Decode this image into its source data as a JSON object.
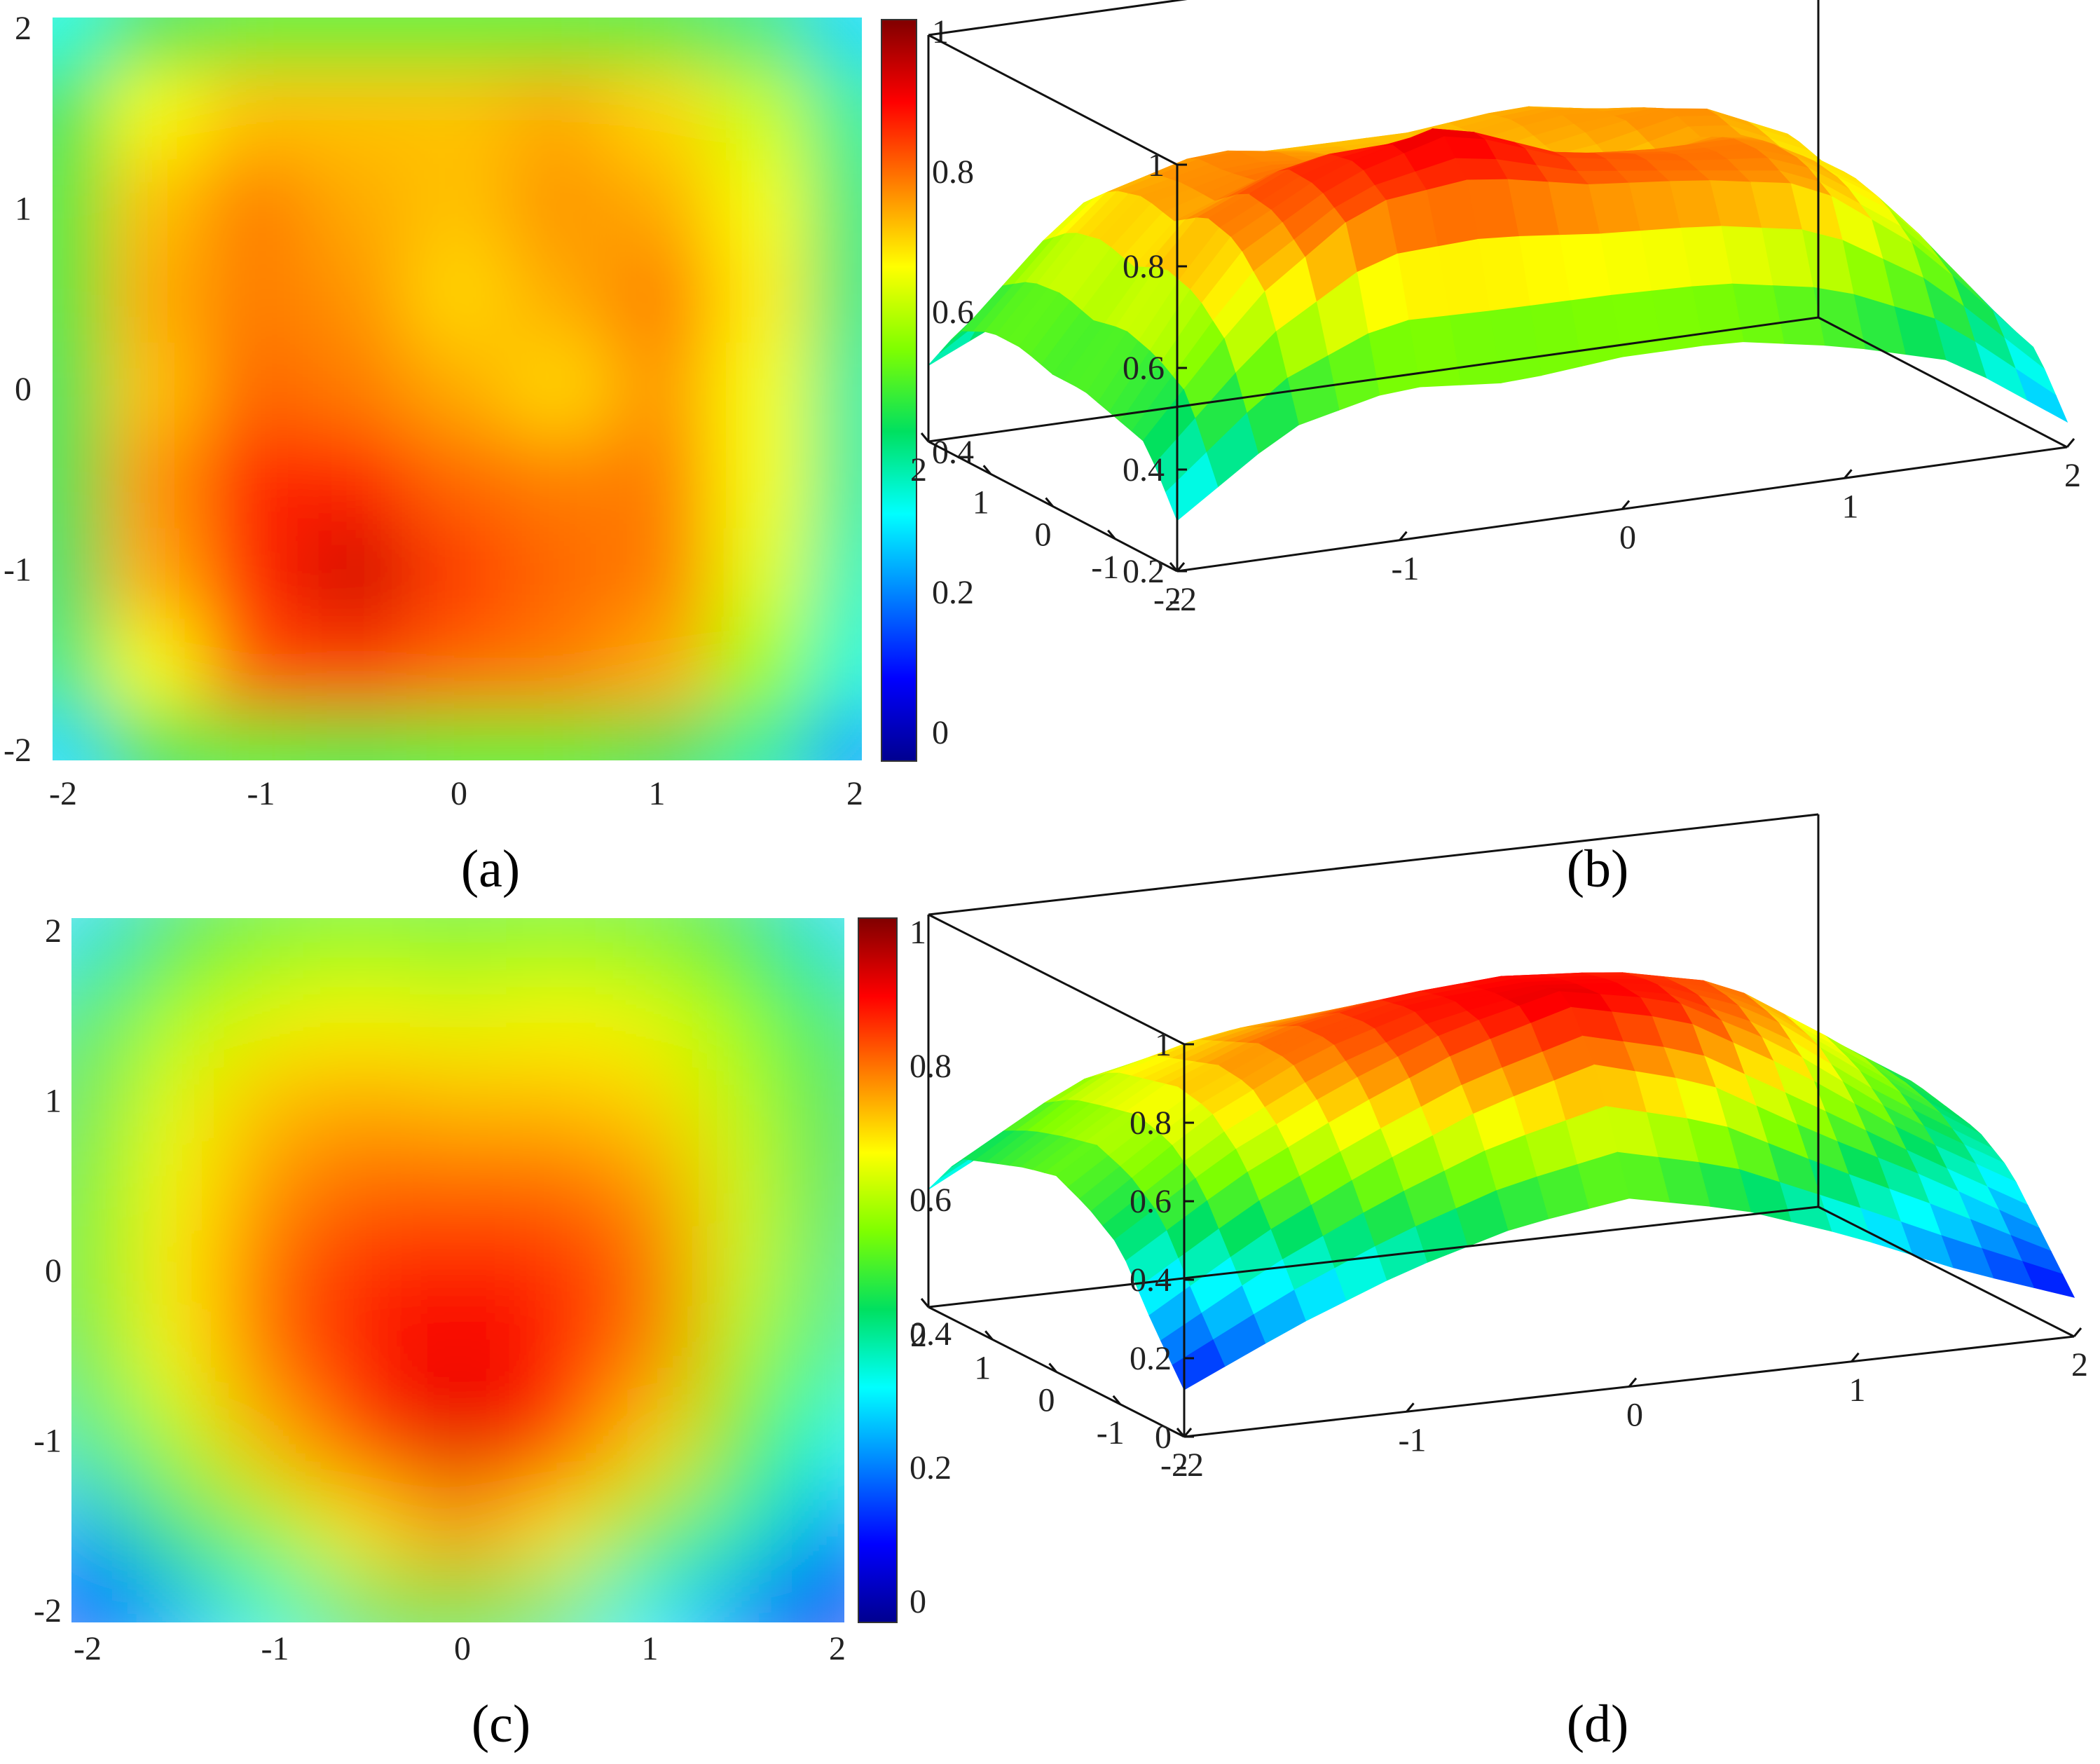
{
  "colormap": [
    "#00008f",
    "#0000ff",
    "#0080ff",
    "#00ffff",
    "#00e060",
    "#7fff00",
    "#ffff00",
    "#ff8000",
    "#ff0000",
    "#800000"
  ],
  "chart_data": [
    {
      "panel": "a",
      "type": "heatmap",
      "label": "(a)",
      "xticks": [
        "-2",
        "-1",
        "0",
        "1",
        "2"
      ],
      "yticks": [
        "2",
        "1",
        "0",
        "-1",
        "-2"
      ],
      "xlim": [
        -2,
        2
      ],
      "ylim": [
        -2,
        2
      ],
      "colorbar": {
        "ticks": [
          "1",
          "0.8",
          "0.6",
          "0.4",
          "0.2",
          "0"
        ],
        "range": [
          0,
          1
        ]
      },
      "x": [
        -2,
        -1.5,
        -1,
        -0.5,
        0,
        0.5,
        1,
        1.5,
        2
      ],
      "y": [
        2,
        1.5,
        1,
        0.5,
        0,
        -0.5,
        -1,
        -1.5,
        -2
      ],
      "z": [
        [
          0.35,
          0.45,
          0.5,
          0.5,
          0.5,
          0.5,
          0.48,
          0.42,
          0.3
        ],
        [
          0.45,
          0.66,
          0.72,
          0.72,
          0.72,
          0.74,
          0.7,
          0.62,
          0.4
        ],
        [
          0.48,
          0.72,
          0.78,
          0.74,
          0.72,
          0.76,
          0.74,
          0.66,
          0.42
        ],
        [
          0.48,
          0.74,
          0.78,
          0.76,
          0.7,
          0.74,
          0.78,
          0.68,
          0.42
        ],
        [
          0.46,
          0.72,
          0.8,
          0.78,
          0.74,
          0.7,
          0.76,
          0.66,
          0.4
        ],
        [
          0.46,
          0.76,
          0.86,
          0.86,
          0.8,
          0.78,
          0.78,
          0.66,
          0.4
        ],
        [
          0.44,
          0.74,
          0.86,
          0.93,
          0.84,
          0.8,
          0.78,
          0.64,
          0.38
        ],
        [
          0.42,
          0.66,
          0.82,
          0.84,
          0.8,
          0.78,
          0.74,
          0.58,
          0.36
        ],
        [
          0.3,
          0.45,
          0.5,
          0.48,
          0.5,
          0.5,
          0.46,
          0.4,
          0.25
        ]
      ]
    },
    {
      "panel": "b",
      "type": "surface",
      "label": "(b)",
      "zticks": [
        "1",
        "0.8",
        "0.6",
        "0.4",
        "0.2"
      ],
      "xticks": [
        "-2",
        "-1",
        "0",
        "1",
        "2"
      ],
      "yticks": [
        "2",
        "1",
        "0",
        "-1",
        "-2"
      ],
      "zlim": [
        0.2,
        1
      ],
      "source": "same data as panel (a)"
    },
    {
      "panel": "c",
      "type": "heatmap",
      "label": "(c)",
      "xticks": [
        "-2",
        "-1",
        "0",
        "1",
        "2"
      ],
      "yticks": [
        "2",
        "1",
        "0",
        "-1",
        "-2"
      ],
      "xlim": [
        -2,
        2
      ],
      "ylim": [
        -2,
        2
      ],
      "colorbar": {
        "ticks": [
          "1",
          "0.8",
          "0.6",
          "0.4",
          "0.2",
          "0"
        ],
        "range": [
          0,
          1
        ]
      },
      "x": [
        -2,
        -1.5,
        -1,
        -0.5,
        0,
        0.5,
        1,
        1.5,
        2
      ],
      "y": [
        2,
        1.5,
        1,
        0.5,
        0,
        -0.5,
        -1,
        -1.5,
        -2
      ],
      "z": [
        [
          0.3,
          0.45,
          0.5,
          0.52,
          0.5,
          0.52,
          0.5,
          0.45,
          0.3
        ],
        [
          0.42,
          0.58,
          0.64,
          0.66,
          0.64,
          0.66,
          0.64,
          0.56,
          0.42
        ],
        [
          0.45,
          0.64,
          0.72,
          0.74,
          0.72,
          0.72,
          0.7,
          0.6,
          0.44
        ],
        [
          0.48,
          0.66,
          0.76,
          0.8,
          0.8,
          0.8,
          0.76,
          0.62,
          0.44
        ],
        [
          0.5,
          0.68,
          0.8,
          0.86,
          0.88,
          0.86,
          0.8,
          0.62,
          0.42
        ],
        [
          0.46,
          0.66,
          0.8,
          0.88,
          0.9,
          0.88,
          0.78,
          0.58,
          0.4
        ],
        [
          0.4,
          0.58,
          0.72,
          0.84,
          0.92,
          0.86,
          0.7,
          0.5,
          0.34
        ],
        [
          0.25,
          0.42,
          0.56,
          0.68,
          0.76,
          0.68,
          0.52,
          0.38,
          0.22
        ],
        [
          0.12,
          0.25,
          0.36,
          0.44,
          0.48,
          0.42,
          0.32,
          0.2,
          0.1
        ]
      ]
    },
    {
      "panel": "d",
      "type": "surface",
      "label": "(d)",
      "zticks": [
        "1",
        "0.8",
        "0.6",
        "0.4",
        "0.2",
        "0"
      ],
      "xticks": [
        "-2",
        "-1",
        "0",
        "1",
        "2"
      ],
      "yticks": [
        "2",
        "1",
        "0",
        "-1",
        "-2"
      ],
      "zlim": [
        0,
        1
      ],
      "source": "same data as panel (c)"
    }
  ]
}
